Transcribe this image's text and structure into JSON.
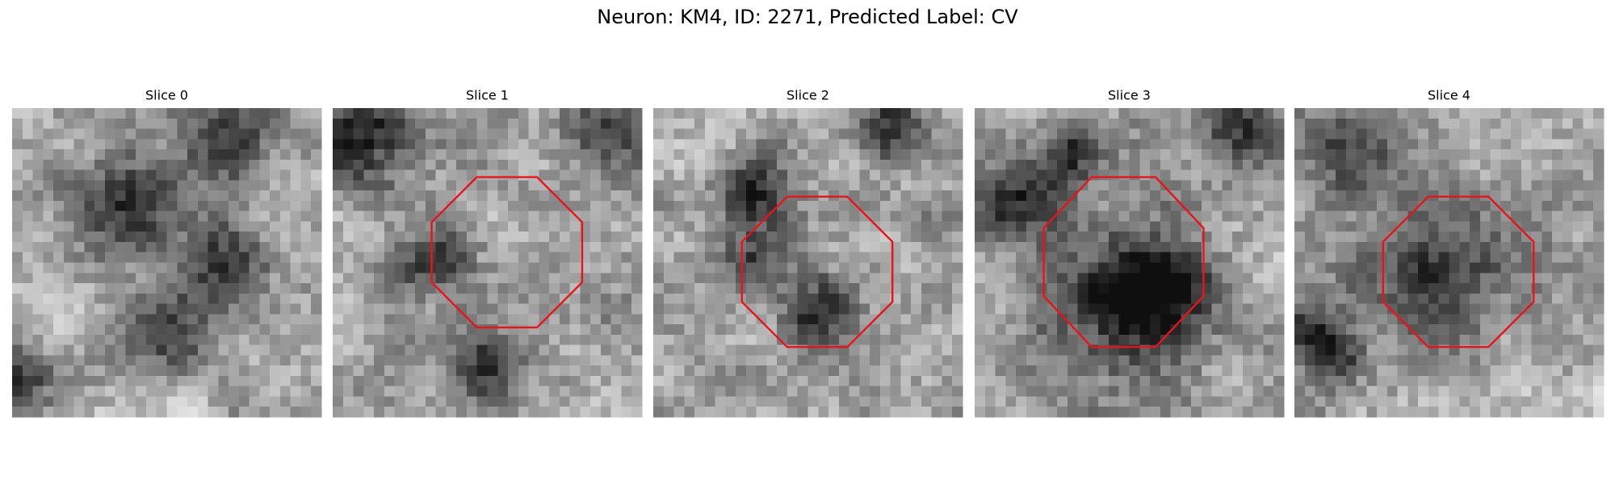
{
  "title": "Neuron: KM4, ID: 2271, Predicted Label: CV",
  "panels": [
    {
      "title": "Slice 0"
    },
    {
      "title": "Slice 1"
    },
    {
      "title": "Slice 2"
    },
    {
      "title": "Slice 3"
    },
    {
      "title": "Slice 4"
    }
  ]
}
